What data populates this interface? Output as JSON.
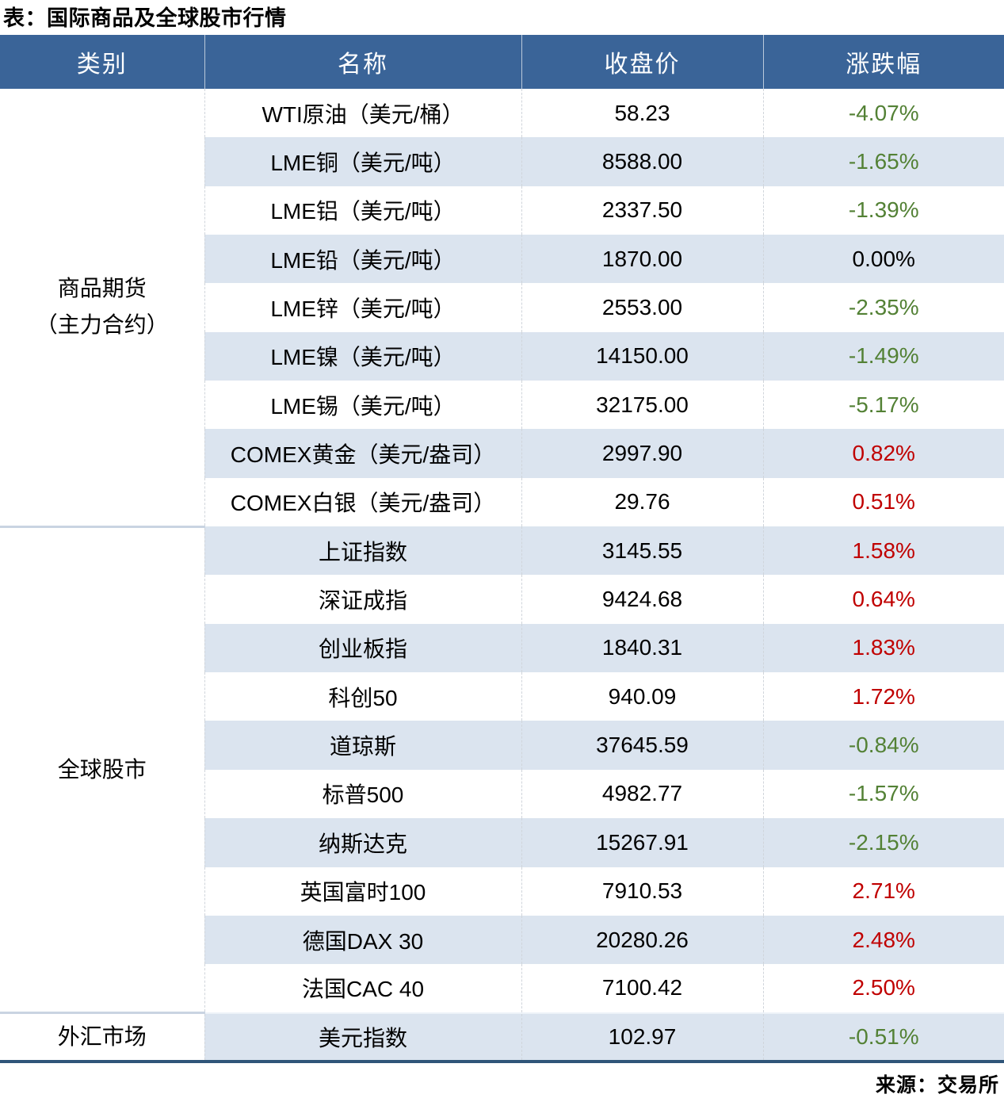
{
  "chart_data": {
    "type": "table",
    "title": "表：国际商品及全球股市行情",
    "source": "来源：交易所",
    "columns": [
      "类别",
      "名称",
      "收盘价",
      "涨跌幅"
    ],
    "sections": [
      {
        "category": "商品期货\n（主力合约）",
        "rows": [
          {
            "name": "WTI原油（美元/桶）",
            "close": "58.23",
            "change": "-4.07%"
          },
          {
            "name": "LME铜（美元/吨）",
            "close": "8588.00",
            "change": "-1.65%"
          },
          {
            "name": "LME铝（美元/吨）",
            "close": "2337.50",
            "change": "-1.39%"
          },
          {
            "name": "LME铅（美元/吨）",
            "close": "1870.00",
            "change": "0.00%"
          },
          {
            "name": "LME锌（美元/吨）",
            "close": "2553.00",
            "change": "-2.35%"
          },
          {
            "name": "LME镍（美元/吨）",
            "close": "14150.00",
            "change": "-1.49%"
          },
          {
            "name": "LME锡（美元/吨）",
            "close": "32175.00",
            "change": "-5.17%"
          },
          {
            "name": "COMEX黄金（美元/盎司）",
            "close": "2997.90",
            "change": "0.82%"
          },
          {
            "name": "COMEX白银（美元/盎司）",
            "close": "29.76",
            "change": "0.51%"
          }
        ]
      },
      {
        "category": "全球股市",
        "rows": [
          {
            "name": "上证指数",
            "close": "3145.55",
            "change": "1.58%"
          },
          {
            "name": "深证成指",
            "close": "9424.68",
            "change": "0.64%"
          },
          {
            "name": "创业板指",
            "close": "1840.31",
            "change": "1.83%"
          },
          {
            "name": "科创50",
            "close": "940.09",
            "change": "1.72%"
          },
          {
            "name": "道琼斯",
            "close": "37645.59",
            "change": "-0.84%"
          },
          {
            "name": "标普500",
            "close": "4982.77",
            "change": "-1.57%"
          },
          {
            "name": "纳斯达克",
            "close": "15267.91",
            "change": "-2.15%"
          },
          {
            "name": "英国富时100",
            "close": "7910.53",
            "change": "2.71%"
          },
          {
            "name": "德国DAX 30",
            "close": "20280.26",
            "change": "2.48%"
          },
          {
            "name": "法国CAC 40",
            "close": "7100.42",
            "change": "2.50%"
          }
        ]
      },
      {
        "category": "外汇市场",
        "rows": [
          {
            "name": "美元指数",
            "close": "102.97",
            "change": "-0.51%"
          }
        ]
      }
    ]
  },
  "colors": {
    "up": "#C00000",
    "down": "#538135",
    "flat": "#000000",
    "header_bg": "#3A6498",
    "stripe": "#DBE4EF",
    "bottom_border": "#2F5579"
  }
}
